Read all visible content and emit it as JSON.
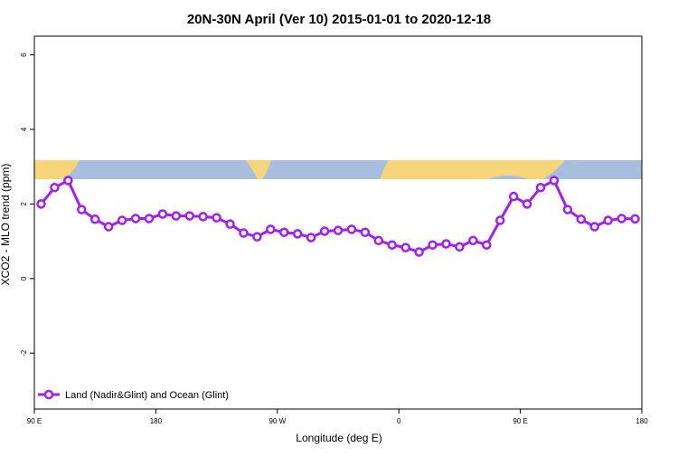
{
  "chart_data": {
    "type": "line",
    "title": "20N-30N April (Ver 10)   2015-01-01 to 2020-12-18",
    "xlabel": "Longitude (deg E)",
    "ylabel": "XCO2 - MLO trend (ppm)",
    "x": [
      95,
      105,
      115,
      125,
      135,
      145,
      155,
      165,
      175,
      185,
      195,
      205,
      215,
      225,
      235,
      245,
      255,
      265,
      275,
      285,
      295,
      305,
      315,
      325,
      335,
      345,
      355,
      365,
      375,
      385,
      395,
      405,
      415,
      425,
      435,
      445,
      455,
      465,
      475,
      485,
      495,
      505,
      515,
      525,
      535
    ],
    "series": [
      {
        "name": "Land (Nadir&Glint) and Ocean (Glint)",
        "color": "#a020f0",
        "values": [
          2.0,
          2.44,
          2.63,
          1.85,
          1.59,
          1.39,
          1.56,
          1.61,
          1.61,
          1.73,
          1.68,
          1.68,
          1.66,
          1.63,
          1.46,
          1.22,
          1.12,
          1.32,
          1.24,
          1.2,
          1.1,
          1.27,
          1.29,
          1.32,
          1.24,
          1.02,
          0.9,
          0.83,
          0.71,
          0.9,
          0.93,
          0.85,
          1.02,
          0.9,
          1.56,
          2.2,
          2.0,
          2.44,
          2.63,
          1.85,
          1.59,
          1.39,
          1.56,
          1.61,
          1.6
        ]
      }
    ],
    "xlim": [
      90,
      540
    ],
    "xticks": [
      {
        "value": 90,
        "label": "90 E"
      },
      180,
      {
        "value": 270,
        "label": "90 W"
      },
      {
        "value": 360,
        "label": "0"
      },
      {
        "value": 450,
        "label": "90 E"
      },
      {
        "value": 540,
        "label": "180"
      }
    ],
    "ylim": [
      -3.5,
      6.5
    ],
    "yticks": [
      -2,
      0,
      2,
      4,
      6
    ],
    "legend": "bottom-left"
  }
}
